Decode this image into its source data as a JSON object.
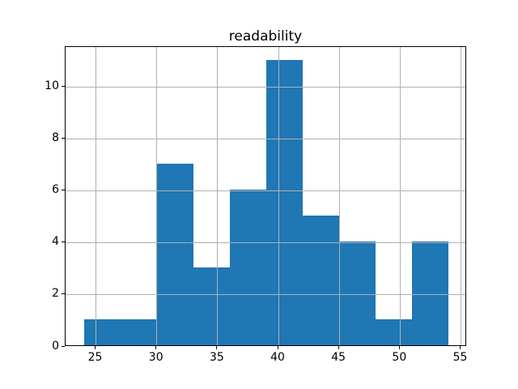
{
  "figure": {
    "background": "#ffffff"
  },
  "chart_data": {
    "type": "bar",
    "subtype": "histogram",
    "title": "readability",
    "xlabel": "",
    "ylabel": "",
    "bin_edges": [
      24,
      27,
      30,
      33,
      36,
      39,
      42,
      45,
      48,
      51,
      54
    ],
    "counts": [
      1,
      1,
      7,
      3,
      6,
      11,
      5,
      4,
      1,
      4
    ],
    "xticks": [
      25,
      30,
      35,
      40,
      45,
      50,
      55
    ],
    "yticks": [
      0,
      2,
      4,
      6,
      8,
      10
    ],
    "xlim": [
      22.5,
      55.5
    ],
    "ylim": [
      0,
      11.55
    ],
    "grid": true,
    "grid_over_bars": true,
    "legend": null,
    "bar_color": "#1f77b4",
    "grid_color": "#b0b0b0",
    "axis_color": "#000000",
    "text_color": "#000000"
  }
}
